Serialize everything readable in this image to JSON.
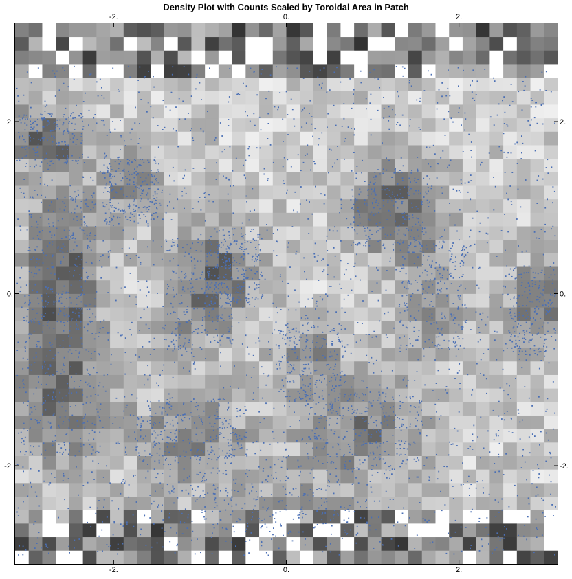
{
  "chart_data": {
    "type": "heatmap",
    "title": "Density Plot with Counts Scaled by Toroidal Area in Patch",
    "xlim": [
      -3.14159,
      3.14159
    ],
    "ylim": [
      -3.14159,
      3.14159
    ],
    "grid": false,
    "x_ticks": [
      {
        "value": -2,
        "label": "-2."
      },
      {
        "value": 0,
        "label": "0."
      },
      {
        "value": 2,
        "label": "2."
      }
    ],
    "y_ticks": [
      {
        "value": -2,
        "label": "-2."
      },
      {
        "value": 0,
        "label": "0."
      },
      {
        "value": 2,
        "label": "2."
      }
    ],
    "grid_size": [
      40,
      40
    ],
    "cell_color_scale": {
      "low": "#ffffff",
      "high": "#111111"
    },
    "points": {
      "color": "#4a6fb5",
      "description_count": 6000
    },
    "dense_regions": [
      {
        "x": -2.8,
        "y": 1.8,
        "rx": 0.35,
        "ry": 0.25,
        "weight": 1.0
      },
      {
        "x": -2.6,
        "y": 0.4,
        "rx": 0.3,
        "ry": 0.6,
        "weight": 1.0
      },
      {
        "x": -2.6,
        "y": -1.0,
        "rx": 0.35,
        "ry": 0.7,
        "weight": 1.0
      },
      {
        "x": -1.8,
        "y": 1.2,
        "rx": 0.25,
        "ry": 0.3,
        "weight": 0.7
      },
      {
        "x": -1.0,
        "y": 0.0,
        "rx": 0.3,
        "ry": 0.5,
        "weight": 0.8
      },
      {
        "x": -0.6,
        "y": 0.3,
        "rx": 0.25,
        "ry": 0.35,
        "weight": 0.6
      },
      {
        "x": -1.1,
        "y": -1.6,
        "rx": 0.5,
        "ry": 0.3,
        "weight": 0.7
      },
      {
        "x": 1.2,
        "y": 1.0,
        "rx": 0.35,
        "ry": 0.35,
        "weight": 1.0
      },
      {
        "x": 0.3,
        "y": -0.8,
        "rx": 0.3,
        "ry": 0.35,
        "weight": 0.6
      },
      {
        "x": 0.9,
        "y": -1.6,
        "rx": 0.5,
        "ry": 0.35,
        "weight": 0.8
      },
      {
        "x": 1.7,
        "y": 0.0,
        "rx": 0.3,
        "ry": 0.5,
        "weight": 0.7
      },
      {
        "x": 2.9,
        "y": -0.2,
        "rx": 0.25,
        "ry": 0.4,
        "weight": 0.9
      },
      {
        "x": -0.3,
        "y": -2.4,
        "rx": 1.0,
        "ry": 0.3,
        "weight": 0.4
      }
    ]
  }
}
